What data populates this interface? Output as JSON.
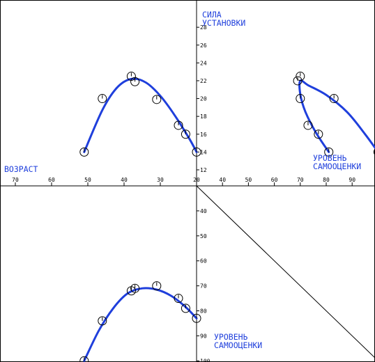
{
  "colors": {
    "background": "#ffffff",
    "frame": "#000000",
    "axis": "#000000",
    "curve": "#1f3fdc",
    "label_text": "#1f3fdc",
    "marker": "#000000"
  },
  "chart_data": [
    {
      "panel": "top-left",
      "type": "scatter",
      "xlabel": "ВОЗРАСТ",
      "ylabel": "СИЛА УСТАНОВКИ",
      "x_ticks": [
        "70",
        "60",
        "50",
        "40",
        "30",
        "20"
      ],
      "y_ticks": [
        "12",
        "14",
        "16",
        "18",
        "20",
        "22",
        "24",
        "26",
        "28"
      ],
      "x_direction": "reversed",
      "xlim": [
        20,
        72
      ],
      "ylim": [
        10.2,
        30
      ],
      "series": [
        {
          "points": [
            {
              "x": 51,
              "y": 14
            },
            {
              "x": 46,
              "y": 20
            },
            {
              "x": 38,
              "y": 22.5
            },
            {
              "x": 37,
              "y": 21.9
            },
            {
              "x": 31,
              "y": 19.9
            },
            {
              "x": 25,
              "y": 17
            },
            {
              "x": 23,
              "y": 16
            },
            {
              "x": 20,
              "y": 14
            }
          ],
          "curve": [
            [
              51,
              14
            ],
            [
              46,
              18.7
            ],
            [
              42,
              21.2
            ],
            [
              38,
              22.2
            ],
            [
              34,
              21.8
            ],
            [
              30,
              20.3
            ],
            [
              26,
              18.1
            ],
            [
              22,
              15.5
            ],
            [
              20,
              14
            ]
          ]
        }
      ]
    },
    {
      "panel": "top-right",
      "type": "scatter",
      "xlabel": "УРОВЕНЬ САМООЦЕНКИ",
      "ylabel": "СИЛА УСТАНОВКИ",
      "x_ticks": [
        "40",
        "50",
        "60",
        "70",
        "80",
        "90"
      ],
      "y_ticks": [
        "12",
        "14",
        "16",
        "18",
        "20",
        "22",
        "24",
        "26",
        "28"
      ],
      "xlim": [
        30,
        101
      ],
      "ylim": [
        10.2,
        30
      ],
      "series": [
        {
          "points": [
            {
              "x": 81,
              "y": 14
            },
            {
              "x": 77,
              "y": 16
            },
            {
              "x": 73,
              "y": 17
            },
            {
              "x": 70,
              "y": 20
            },
            {
              "x": 69,
              "y": 22
            },
            {
              "x": 70,
              "y": 22.5
            },
            {
              "x": 83,
              "y": 20
            },
            {
              "x": 100,
              "y": 14
            }
          ],
          "curve": [
            [
              81,
              14
            ],
            [
              76,
              16.2
            ],
            [
              72,
              18.5
            ],
            [
              70,
              20.5
            ],
            [
              70,
              22
            ],
            [
              73,
              21.5
            ],
            [
              80,
              20.4
            ],
            [
              88,
              18.5
            ],
            [
              95,
              16
            ],
            [
              100,
              14
            ]
          ]
        }
      ]
    },
    {
      "panel": "bottom-left",
      "type": "scatter",
      "xlabel": "ВОЗРАСТ",
      "ylabel": "УРОВЕНЬ САМООЦЕНКИ",
      "x_ticks": [],
      "y_ticks": [
        "40",
        "50",
        "60",
        "70",
        "80",
        "90",
        "100"
      ],
      "x_direction": "reversed",
      "y_direction": "reversed",
      "xlim": [
        20,
        72
      ],
      "ylim": [
        30,
        101
      ],
      "series": [
        {
          "points": [
            {
              "x": 51,
              "y": 100
            },
            {
              "x": 46,
              "y": 84
            },
            {
              "x": 38,
              "y": 72
            },
            {
              "x": 37,
              "y": 71
            },
            {
              "x": 31,
              "y": 70
            },
            {
              "x": 25,
              "y": 75
            },
            {
              "x": 23,
              "y": 79
            },
            {
              "x": 20,
              "y": 83
            }
          ],
          "curve": [
            [
              51,
              100
            ],
            [
              47,
              88
            ],
            [
              43,
              79
            ],
            [
              39,
              73
            ],
            [
              35,
              71
            ],
            [
              31,
              71.5
            ],
            [
              27,
              74
            ],
            [
              23,
              78.5
            ],
            [
              20,
              83
            ]
          ]
        }
      ]
    },
    {
      "panel": "bottom-right",
      "type": "line",
      "xlabel": "",
      "ylabel": "",
      "series": [
        {
          "kind": "diagonal-transfer",
          "points": [
            {
              "x": 30,
              "y": 30
            },
            {
              "x": 101,
              "y": 101
            }
          ]
        }
      ]
    }
  ]
}
